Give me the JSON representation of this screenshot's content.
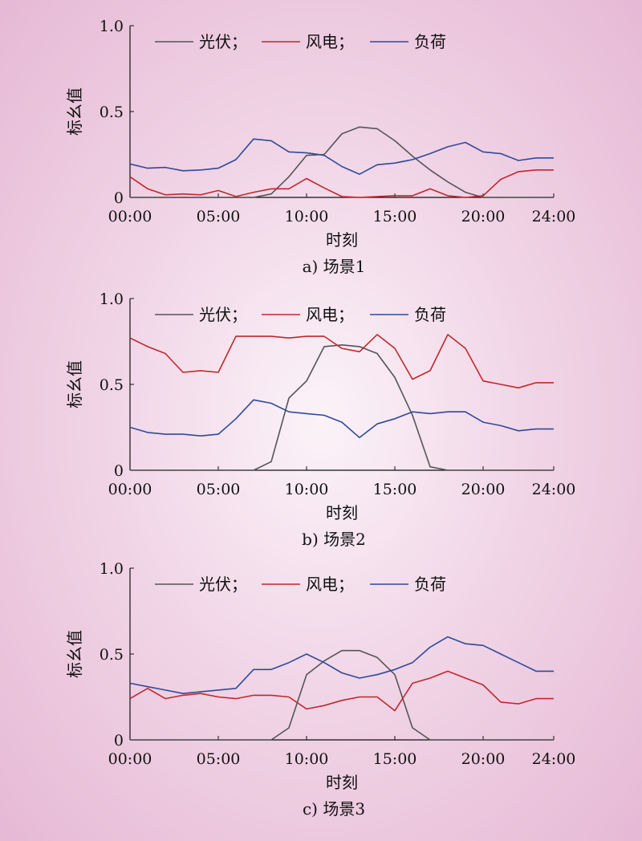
{
  "figure": {
    "x_tick_labels": [
      "00:00",
      "05:00",
      "10:00",
      "15:00",
      "20:00",
      "24:00"
    ],
    "y_tick_labels": [
      "0",
      "0.5",
      "1.0"
    ],
    "colors": {
      "pv": "#555555",
      "wind": "#c0282e",
      "load": "#2f4a9a"
    }
  },
  "chart_data": [
    {
      "type": "line",
      "caption": "a) 场景1",
      "xlabel": "时刻",
      "ylabel": "标幺值",
      "xlim": [
        0,
        24
      ],
      "ylim": [
        0,
        1.0
      ],
      "legend_position": "top",
      "x": [
        0,
        1,
        2,
        3,
        4,
        5,
        6,
        7,
        8,
        9,
        10,
        11,
        12,
        13,
        14,
        15,
        16,
        17,
        18,
        19,
        20,
        21,
        22,
        23,
        24
      ],
      "series": [
        {
          "name": "光伏；",
          "color": "#555555",
          "values": [
            0,
            0,
            0,
            0,
            0,
            0,
            0,
            0,
            0.02,
            0.12,
            0.245,
            0.25,
            0.37,
            0.41,
            0.4,
            0.33,
            0.24,
            0.16,
            0.09,
            0.03,
            0,
            0,
            0,
            0,
            0
          ]
        },
        {
          "name": "风电；",
          "color": "#c0282e",
          "values": [
            0.12,
            0.05,
            0.015,
            0.02,
            0.015,
            0.04,
            0.005,
            0.03,
            0.05,
            0.05,
            0.11,
            0.055,
            0.005,
            0,
            0.005,
            0.01,
            0.01,
            0.05,
            0.01,
            0,
            0.01,
            0.105,
            0.15,
            0.16,
            0.16
          ]
        },
        {
          "name": "负荷",
          "color": "#2f4a9a",
          "values": [
            0.195,
            0.17,
            0.175,
            0.155,
            0.16,
            0.17,
            0.22,
            0.34,
            0.33,
            0.265,
            0.26,
            0.245,
            0.18,
            0.135,
            0.19,
            0.2,
            0.22,
            0.255,
            0.295,
            0.32,
            0.265,
            0.255,
            0.215,
            0.23,
            0.23
          ]
        }
      ]
    },
    {
      "type": "line",
      "caption": "b) 场景2",
      "xlabel": "时刻",
      "ylabel": "标幺值",
      "xlim": [
        0,
        24
      ],
      "ylim": [
        0,
        1.0
      ],
      "legend_position": "top",
      "x": [
        0,
        1,
        2,
        3,
        4,
        5,
        6,
        7,
        8,
        9,
        10,
        11,
        12,
        13,
        14,
        15,
        16,
        17,
        18,
        19,
        20,
        21,
        22,
        23,
        24
      ],
      "series": [
        {
          "name": "光伏；",
          "color": "#555555",
          "values": [
            0,
            0,
            0,
            0,
            0,
            0,
            0,
            0,
            0.05,
            0.42,
            0.52,
            0.72,
            0.73,
            0.72,
            0.68,
            0.54,
            0.32,
            0.02,
            0,
            0,
            0,
            0,
            0,
            0,
            0
          ]
        },
        {
          "name": "风电；",
          "color": "#c0282e",
          "values": [
            0.77,
            0.72,
            0.68,
            0.57,
            0.58,
            0.57,
            0.78,
            0.78,
            0.78,
            0.77,
            0.78,
            0.78,
            0.71,
            0.69,
            0.79,
            0.71,
            0.53,
            0.58,
            0.79,
            0.71,
            0.52,
            0.5,
            0.48,
            0.51,
            0.51
          ]
        },
        {
          "name": "负荷",
          "color": "#2f4a9a",
          "values": [
            0.25,
            0.22,
            0.21,
            0.21,
            0.2,
            0.21,
            0.3,
            0.41,
            0.39,
            0.34,
            0.33,
            0.32,
            0.28,
            0.19,
            0.27,
            0.3,
            0.34,
            0.33,
            0.34,
            0.34,
            0.28,
            0.26,
            0.23,
            0.24,
            0.24
          ]
        }
      ]
    },
    {
      "type": "line",
      "caption": "c) 场景3",
      "xlabel": "时刻",
      "ylabel": "标幺值",
      "xlim": [
        0,
        24
      ],
      "ylim": [
        0,
        1.0
      ],
      "legend_position": "top",
      "x": [
        0,
        1,
        2,
        3,
        4,
        5,
        6,
        7,
        8,
        9,
        10,
        11,
        12,
        13,
        14,
        15,
        16,
        17,
        18,
        19,
        20,
        21,
        22,
        23,
        24
      ],
      "series": [
        {
          "name": "光伏；",
          "color": "#555555",
          "values": [
            0,
            0,
            0,
            0,
            0,
            0,
            0,
            0,
            0,
            0.07,
            0.38,
            0.46,
            0.52,
            0.52,
            0.48,
            0.38,
            0.07,
            0,
            0,
            0,
            0,
            0,
            0,
            0,
            0
          ]
        },
        {
          "name": "风电；",
          "color": "#c0282e",
          "values": [
            0.24,
            0.3,
            0.24,
            0.26,
            0.27,
            0.25,
            0.24,
            0.26,
            0.26,
            0.25,
            0.18,
            0.2,
            0.23,
            0.25,
            0.25,
            0.17,
            0.33,
            0.36,
            0.4,
            0.36,
            0.32,
            0.22,
            0.21,
            0.24,
            0.24
          ]
        },
        {
          "name": "负荷",
          "color": "#2f4a9a",
          "values": [
            0.33,
            0.31,
            0.29,
            0.27,
            0.28,
            0.29,
            0.3,
            0.41,
            0.41,
            0.45,
            0.5,
            0.45,
            0.39,
            0.36,
            0.38,
            0.41,
            0.45,
            0.54,
            0.6,
            0.56,
            0.55,
            0.5,
            0.45,
            0.4,
            0.4
          ]
        }
      ]
    }
  ]
}
